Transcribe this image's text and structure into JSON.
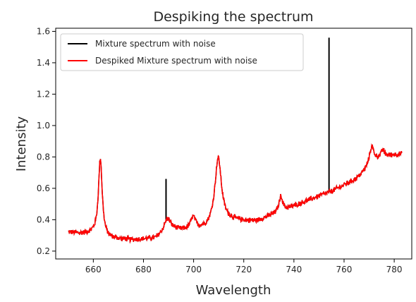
{
  "chart_data": {
    "type": "line",
    "title": "Despiking the spectrum",
    "xlabel": "Wavelength",
    "ylabel": "Intensity",
    "xlim": [
      645,
      787
    ],
    "ylim": [
      0.15,
      1.62
    ],
    "xticks": [
      660,
      680,
      700,
      720,
      740,
      760,
      780
    ],
    "yticks": [
      0.2,
      0.4,
      0.6,
      0.8,
      1.0,
      1.2,
      1.4,
      1.6
    ],
    "grid": false,
    "legend_position": "top-left",
    "colors": {
      "raw": "#000000",
      "despiked": "#ff0000"
    },
    "x_range": [
      650,
      783
    ],
    "series": [
      {
        "name": "Mixture spectrum with noise",
        "color": "#000000",
        "baseline": [
          [
            650,
            0.32
          ],
          [
            655,
            0.31
          ],
          [
            660,
            0.31
          ],
          [
            665,
            0.28
          ],
          [
            675,
            0.27
          ],
          [
            685,
            0.28
          ],
          [
            690,
            0.34
          ],
          [
            695,
            0.33
          ],
          [
            700,
            0.33
          ],
          [
            705,
            0.34
          ],
          [
            715,
            0.39
          ],
          [
            725,
            0.39
          ],
          [
            735,
            0.45
          ],
          [
            745,
            0.52
          ],
          [
            755,
            0.58
          ],
          [
            765,
            0.66
          ],
          [
            775,
            0.8
          ],
          [
            783,
            0.82
          ]
        ],
        "peaks": [
          {
            "center": 662.8,
            "height": 0.5,
            "width": 0.9
          },
          {
            "center": 689.5,
            "height": 0.07,
            "width": 1.5
          },
          {
            "center": 699.8,
            "height": 0.08,
            "width": 1.2
          },
          {
            "center": 709.8,
            "height": 0.43,
            "width": 1.6
          },
          {
            "center": 734.8,
            "height": 0.1,
            "width": 0.9
          },
          {
            "center": 771,
            "height": 0.12,
            "width": 1.2
          },
          {
            "center": 775.5,
            "height": 0.04,
            "width": 0.6
          }
        ],
        "noise_amplitude": 0.015,
        "spikes": [
          {
            "x": 689,
            "y": 0.66
          },
          {
            "x": 754,
            "y": 1.56
          }
        ]
      },
      {
        "name": "Despiked Mixture spectrum with noise",
        "color": "#ff0000",
        "same_as_raw_without_spikes": true
      }
    ]
  }
}
